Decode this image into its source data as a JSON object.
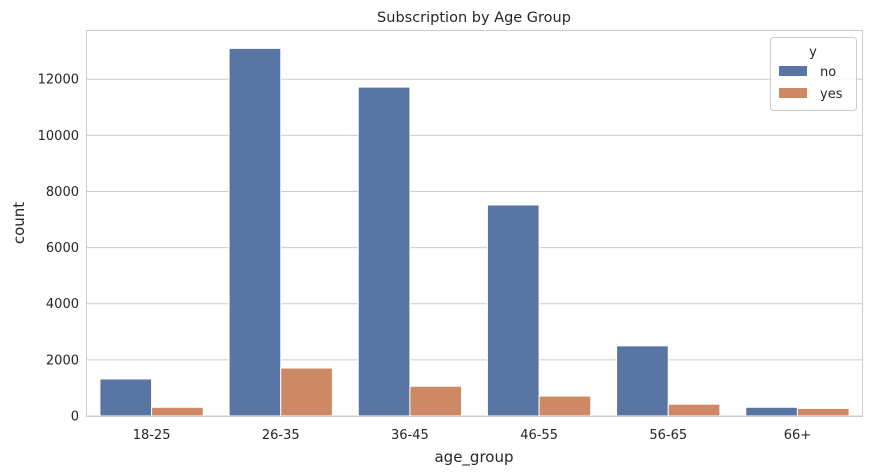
{
  "chart_data": {
    "type": "bar",
    "title": "Subscription by Age Group",
    "xlabel": "age_group",
    "ylabel": "count",
    "categories": [
      "18-25",
      "26-35",
      "36-45",
      "46-55",
      "56-65",
      "66+"
    ],
    "series": [
      {
        "name": "no",
        "color": "#5975a4",
        "values": [
          1320,
          13100,
          11720,
          7520,
          2500,
          310
        ]
      },
      {
        "name": "yes",
        "color": "#cc8963",
        "values": [
          310,
          1710,
          1060,
          710,
          420,
          270
        ]
      }
    ],
    "ylim": [
      0,
      13755
    ],
    "yticks": [
      0,
      2000,
      4000,
      6000,
      8000,
      10000,
      12000
    ],
    "grid": "horizontal",
    "legend": {
      "title": "y",
      "placement": "top-right"
    }
  }
}
